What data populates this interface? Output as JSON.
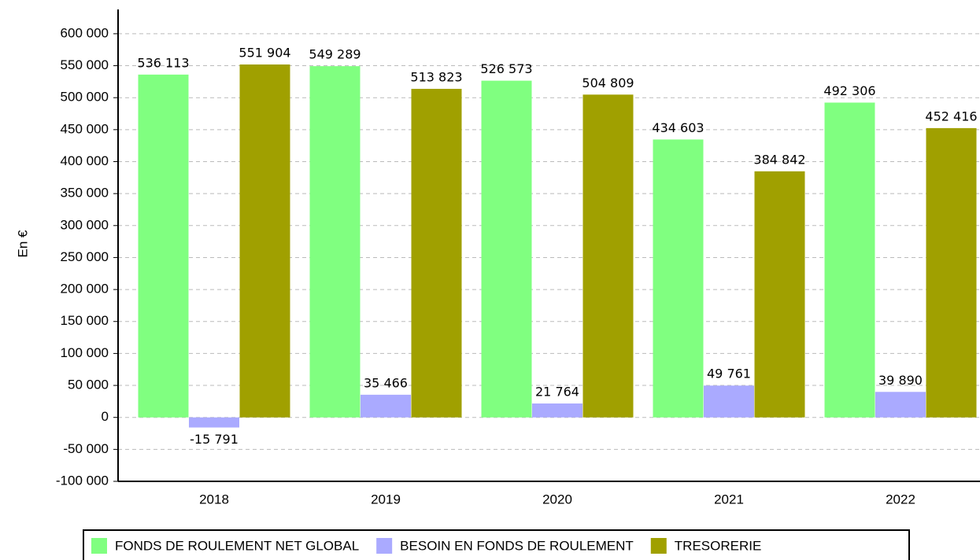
{
  "chart_data": {
    "type": "bar",
    "ylabel": "En €",
    "categories": [
      "2018",
      "2019",
      "2020",
      "2021",
      "2022"
    ],
    "series": [
      {
        "name": "FONDS DE ROULEMENT NET GLOBAL",
        "color": "#80ff80",
        "values": [
          536113,
          549289,
          526573,
          434603,
          492306
        ],
        "value_labels": [
          "536 113",
          "549 289",
          "526 573",
          "434 603",
          "492 306"
        ]
      },
      {
        "name": "BESOIN EN FONDS DE ROULEMENT",
        "color": "#aaaaff",
        "values": [
          -15791,
          35466,
          21764,
          49761,
          39890
        ],
        "value_labels": [
          "-15 791",
          "35 466",
          "21 764",
          "49 761",
          "39 890"
        ]
      },
      {
        "name": "TRESORERIE",
        "color": "#a0a000",
        "values": [
          551904,
          513823,
          504809,
          384842,
          452416
        ],
        "value_labels": [
          "551 904",
          "513 823",
          "504 809",
          "384 842",
          "452 416"
        ]
      }
    ],
    "ylim": [
      -100000,
      638000
    ],
    "yticks": [
      {
        "value": -100000,
        "label": "-100 000"
      },
      {
        "value": -50000,
        "label": "-50 000"
      },
      0,
      {
        "value": 50000,
        "label": "50 000"
      },
      {
        "value": 100000,
        "label": "100 000"
      },
      {
        "value": 150000,
        "label": "150 000"
      },
      {
        "value": 200000,
        "label": "200 000"
      },
      {
        "value": 250000,
        "label": "250 000"
      },
      {
        "value": 300000,
        "label": "300 000"
      },
      {
        "value": 350000,
        "label": "350 000"
      },
      {
        "value": 400000,
        "label": "400 000"
      },
      {
        "value": 450000,
        "label": "450 000"
      },
      {
        "value": 500000,
        "label": "500 000"
      },
      {
        "value": 550000,
        "label": "550 000"
      },
      {
        "value": 600000,
        "label": "600 000"
      }
    ],
    "grid": true
  }
}
